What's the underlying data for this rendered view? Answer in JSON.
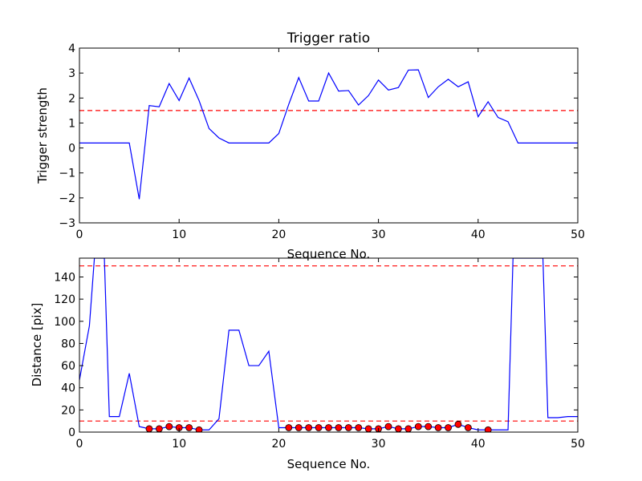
{
  "chart_data": [
    {
      "type": "line",
      "title": "Trigger ratio",
      "xlabel": "Sequence No.",
      "ylabel": "Trigger strength",
      "xlim": [
        0,
        50
      ],
      "ylim": [
        -3,
        4
      ],
      "xticks": [
        0,
        10,
        20,
        30,
        40,
        50
      ],
      "yticks": [
        -3,
        -2,
        -1,
        0,
        1,
        2,
        3,
        4
      ],
      "grid": false,
      "threshold": 1.5,
      "colors": {
        "line": "#0000ff",
        "threshold": "#ff0000"
      },
      "series": [
        {
          "x": [
            0,
            1,
            2,
            3,
            4,
            5,
            6,
            7,
            8,
            9,
            10,
            11,
            12,
            13,
            14,
            15,
            16,
            17,
            18,
            19,
            20,
            21,
            22,
            23,
            24,
            25,
            26,
            27,
            28,
            29,
            30,
            31,
            32,
            33,
            34,
            35,
            36,
            37,
            38,
            39,
            40,
            41,
            42,
            43,
            44,
            45,
            46,
            47,
            48,
            49,
            50
          ],
          "y": [
            0.2,
            0.2,
            0.2,
            0.2,
            0.2,
            0.2,
            -2.05,
            1.7,
            1.65,
            2.58,
            1.9,
            2.8,
            1.9,
            0.78,
            0.4,
            0.2,
            0.2,
            0.2,
            0.2,
            0.2,
            0.58,
            1.75,
            2.82,
            1.88,
            1.88,
            3.0,
            2.28,
            2.3,
            1.72,
            2.1,
            2.72,
            2.32,
            2.42,
            3.12,
            3.13,
            2.02,
            2.45,
            2.75,
            2.45,
            2.65,
            1.25,
            1.85,
            1.22,
            1.05,
            0.2,
            0.2,
            0.2,
            0.2,
            0.2,
            0.2,
            0.2
          ]
        }
      ]
    },
    {
      "type": "line",
      "title": "",
      "xlabel": "Sequence No.",
      "ylabel": "Distance [pix]",
      "xlim": [
        0,
        50
      ],
      "ylim": [
        0,
        157
      ],
      "xticks": [
        0,
        10,
        20,
        30,
        40,
        50
      ],
      "yticks": [
        0,
        20,
        40,
        60,
        80,
        100,
        120,
        140
      ],
      "grid": false,
      "thresholds": [
        10,
        150
      ],
      "colors": {
        "line": "#0000ff",
        "threshold": "#ff0000",
        "marker": "#ff0000"
      },
      "series": [
        {
          "x": [
            0,
            1,
            1.5,
            2.5,
            3,
            4,
            5,
            6,
            7,
            8,
            9,
            10,
            11,
            12,
            13,
            14,
            15,
            16,
            17,
            18,
            19,
            20,
            21,
            22,
            23,
            24,
            25,
            26,
            27,
            28,
            29,
            30,
            31,
            32,
            33,
            34,
            35,
            36,
            37,
            38,
            39,
            40,
            41,
            42,
            43,
            43.5,
            46.5,
            47,
            48,
            49,
            50
          ],
          "y": [
            47,
            96,
            157,
            157,
            14,
            14,
            53,
            5,
            3,
            3,
            5,
            4,
            4,
            2,
            2,
            12,
            92,
            92,
            60,
            60,
            73,
            4,
            4,
            4,
            4,
            4,
            4,
            4,
            4,
            4,
            3,
            3,
            5,
            3,
            3,
            5,
            5,
            4,
            4,
            7,
            4,
            2,
            2,
            2,
            2,
            157,
            157,
            13,
            13,
            14,
            14
          ]
        }
      ],
      "markers": {
        "x": [
          7,
          8,
          9,
          10,
          11,
          12,
          21,
          22,
          23,
          24,
          25,
          26,
          27,
          28,
          29,
          30,
          31,
          32,
          33,
          34,
          35,
          36,
          37,
          38,
          39,
          41
        ],
        "y": [
          3,
          3,
          5,
          4,
          4,
          2,
          4,
          4,
          4,
          4,
          4,
          4,
          4,
          4,
          3,
          3,
          5,
          3,
          3,
          5,
          5,
          4,
          4,
          7,
          4,
          2
        ]
      }
    }
  ]
}
